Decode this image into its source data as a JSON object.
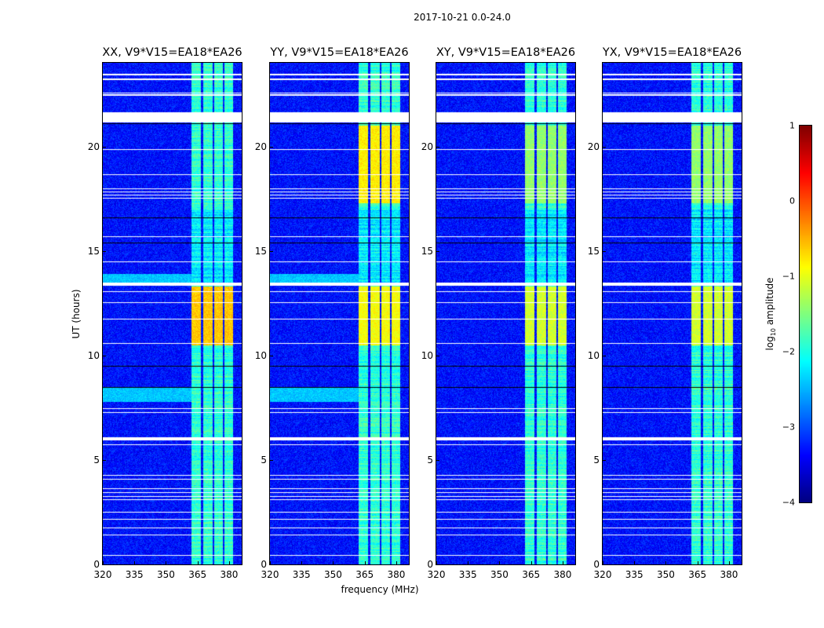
{
  "figure": {
    "suptitle": "2017-10-21 0.0-24.0",
    "xlabel": "frequency (MHz)",
    "ylabel": "UT (hours)",
    "colorbar_label_prefix": "log",
    "colorbar_label_sub": "10",
    "colorbar_label_suffix": " amplitude"
  },
  "chart_data": {
    "type": "heatmap",
    "colormap": "jet",
    "panels": [
      {
        "title": "XX, V9*V15=EA18*EA26",
        "band_level": -1.9,
        "bright_periods": [
          [
            10.5,
            13.3,
            -0.6
          ]
        ],
        "cyan_periods": [
          [
            7.8,
            8.5
          ],
          [
            13.5,
            13.9
          ]
        ]
      },
      {
        "title": "YY, V9*V15=EA18*EA26",
        "band_level": -1.9,
        "bright_periods": [
          [
            17.3,
            21.0,
            -0.8
          ],
          [
            10.5,
            13.3,
            -0.9
          ]
        ],
        "cyan_periods": [
          [
            7.8,
            8.5
          ],
          [
            13.5,
            13.9
          ]
        ]
      },
      {
        "title": "XY, V9*V15=EA18*EA26",
        "band_level": -1.9,
        "bright_periods": [
          [
            10.5,
            13.3,
            -1.1
          ],
          [
            17.3,
            21.0,
            -1.4
          ]
        ],
        "cyan_periods": []
      },
      {
        "title": "YX, V9*V15=EA18*EA26",
        "band_level": -1.9,
        "bright_periods": [
          [
            10.5,
            13.3,
            -1.1
          ],
          [
            17.3,
            21.0,
            -1.4
          ]
        ],
        "cyan_periods": []
      }
    ],
    "xlim": [
      320,
      386
    ],
    "ylim": [
      0,
      24
    ],
    "xticks": [
      320,
      335,
      350,
      365,
      380
    ],
    "yticks": [
      0,
      5,
      10,
      15,
      20
    ],
    "background_level": -3.3,
    "rfi_bands_mhz": [
      [
        362,
        366.6
      ],
      [
        367.4,
        371.9
      ],
      [
        372.6,
        377
      ],
      [
        377.5,
        381.6
      ]
    ],
    "flagged_hours": [
      [
        23.4,
        23.5
      ],
      [
        23.2,
        23.25
      ],
      [
        22.55,
        22.6
      ],
      [
        22.45,
        22.5
      ],
      [
        21.15,
        21.65
      ],
      [
        19.84,
        19.88
      ],
      [
        18.64,
        18.68
      ],
      [
        17.98,
        18.02
      ],
      [
        17.83,
        17.87
      ],
      [
        17.68,
        17.72
      ],
      [
        17.52,
        17.57
      ],
      [
        15.68,
        15.72
      ],
      [
        14.48,
        14.52
      ],
      [
        13.35,
        13.5
      ],
      [
        13.05,
        13.09
      ],
      [
        12.52,
        12.56
      ],
      [
        11.73,
        11.77
      ],
      [
        10.58,
        10.62
      ],
      [
        7.45,
        7.5
      ],
      [
        7.27,
        7.31
      ],
      [
        5.95,
        6.1
      ],
      [
        5.73,
        5.77
      ],
      [
        4.26,
        4.3
      ],
      [
        4.07,
        4.11
      ],
      [
        3.62,
        3.66
      ],
      [
        3.43,
        3.47
      ],
      [
        3.25,
        3.29
      ],
      [
        3.1,
        3.14
      ],
      [
        2.48,
        2.52
      ],
      [
        2.16,
        2.2
      ],
      [
        1.75,
        1.79
      ],
      [
        1.41,
        1.45
      ],
      [
        0.43,
        0.47
      ]
    ],
    "dark_hours": [
      21.1,
      16.6,
      15.4,
      9.5,
      8.5
    ],
    "colorbar": {
      "vmin": -4,
      "vmax": 1,
      "ticks": [
        1,
        0,
        -1,
        -2,
        -3,
        -4
      ],
      "tick_labels": [
        "1",
        "0",
        "−1",
        "−2",
        "−3",
        "−4"
      ]
    }
  }
}
